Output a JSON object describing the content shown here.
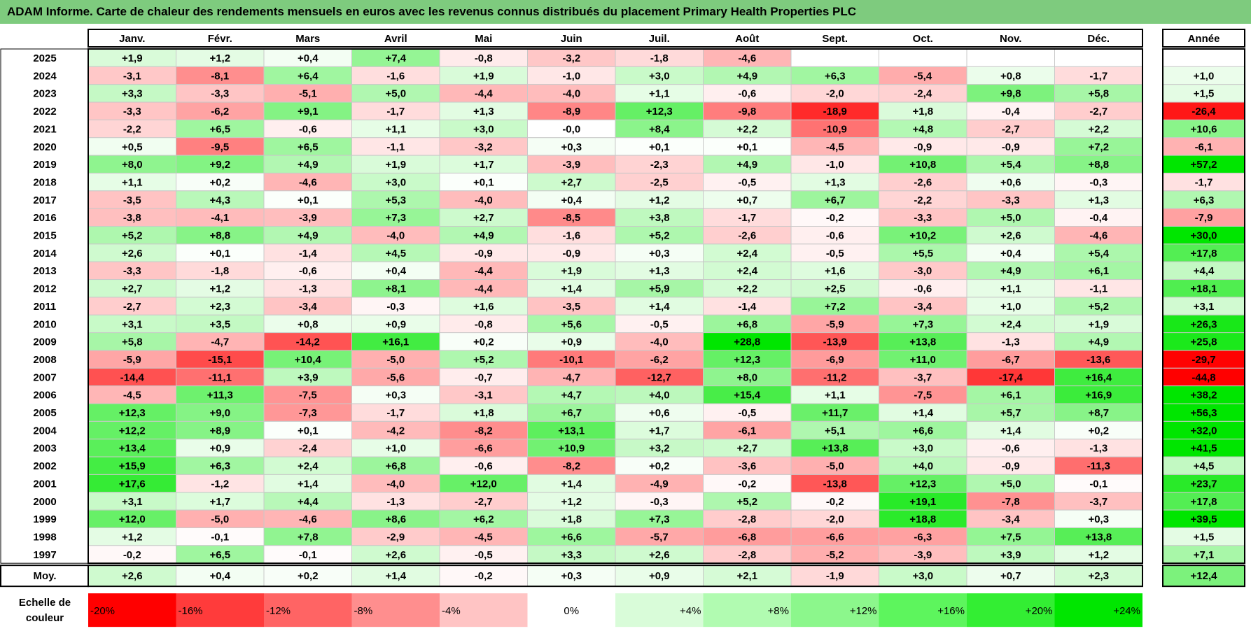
{
  "title": "ADAM Informe. Carte de chaleur des rendements mensuels en euros avec les revenus connus distribués du placement Primary Health Properties PLC",
  "chart_data": {
    "type": "heatmap",
    "title": "ADAM Informe. Carte de chaleur des rendements mensuels en euros avec les revenus connus distribués du placement Primary Health Properties PLC",
    "columns": [
      "Janv.",
      "Févr.",
      "Mars",
      "Avril",
      "Mai",
      "Juin",
      "Juil.",
      "Août",
      "Sept.",
      "Oct.",
      "Nov.",
      "Déc."
    ],
    "year_header": "Année",
    "rows": [
      {
        "label": "2025",
        "values": [
          "+1,9",
          "+1,2",
          "+0,4",
          "+7,4",
          "-0,8",
          "-3,2",
          "-1,8",
          "-4,6",
          "",
          "",
          "",
          ""
        ],
        "year": ""
      },
      {
        "label": "2024",
        "values": [
          "-3,1",
          "-8,1",
          "+6,4",
          "-1,6",
          "+1,9",
          "-1,0",
          "+3,0",
          "+4,9",
          "+6,3",
          "-5,4",
          "+0,8",
          "-1,7"
        ],
        "year": "+1,0"
      },
      {
        "label": "2023",
        "values": [
          "+3,3",
          "-3,3",
          "-5,1",
          "+5,0",
          "-4,4",
          "-4,0",
          "+1,1",
          "-0,6",
          "-2,0",
          "-2,4",
          "+9,8",
          "+5,8"
        ],
        "year": "+1,5"
      },
      {
        "label": "2022",
        "values": [
          "-3,3",
          "-6,2",
          "+9,1",
          "-1,7",
          "+1,3",
          "-8,9",
          "+12,3",
          "-9,8",
          "-18,9",
          "+1,8",
          "-0,4",
          "-2,7"
        ],
        "year": "-26,4"
      },
      {
        "label": "2021",
        "values": [
          "-2,2",
          "+6,5",
          "-0,6",
          "+1,1",
          "+3,0",
          "-0,0",
          "+8,4",
          "+2,2",
          "-10,9",
          "+4,8",
          "-2,7",
          "+2,2"
        ],
        "year": "+10,6"
      },
      {
        "label": "2020",
        "values": [
          "+0,5",
          "-9,5",
          "+6,5",
          "-1,1",
          "-3,2",
          "+0,3",
          "+0,1",
          "+0,1",
          "-4,5",
          "-0,9",
          "-0,9",
          "+7,2"
        ],
        "year": "-6,1"
      },
      {
        "label": "2019",
        "values": [
          "+8,0",
          "+9,2",
          "+4,9",
          "+1,9",
          "+1,7",
          "-3,9",
          "-2,3",
          "+4,9",
          "-1,0",
          "+10,8",
          "+5,4",
          "+8,8"
        ],
        "year": "+57,2"
      },
      {
        "label": "2018",
        "values": [
          "+1,1",
          "+0,2",
          "-4,6",
          "+3,0",
          "+0,1",
          "+2,7",
          "-2,5",
          "-0,5",
          "+1,3",
          "-2,6",
          "+0,6",
          "-0,3"
        ],
        "year": "-1,7"
      },
      {
        "label": "2017",
        "values": [
          "-3,5",
          "+4,3",
          "+0,1",
          "+5,3",
          "-4,0",
          "+0,4",
          "+1,2",
          "+0,7",
          "+6,7",
          "-2,2",
          "-3,3",
          "+1,3"
        ],
        "year": "+6,3"
      },
      {
        "label": "2016",
        "values": [
          "-3,8",
          "-4,1",
          "-3,9",
          "+7,3",
          "+2,7",
          "-8,5",
          "+3,8",
          "-1,7",
          "-0,2",
          "-3,3",
          "+5,0",
          "-0,4"
        ],
        "year": "-7,9"
      },
      {
        "label": "2015",
        "values": [
          "+5,2",
          "+8,8",
          "+4,9",
          "-4,0",
          "+4,9",
          "-1,6",
          "+5,2",
          "-2,6",
          "-0,6",
          "+10,2",
          "+2,6",
          "-4,6"
        ],
        "year": "+30,0"
      },
      {
        "label": "2014",
        "values": [
          "+2,6",
          "+0,1",
          "-1,4",
          "+4,5",
          "-0,9",
          "-0,9",
          "+0,3",
          "+2,4",
          "-0,5",
          "+5,5",
          "+0,4",
          "+5,4"
        ],
        "year": "+17,8"
      },
      {
        "label": "2013",
        "values": [
          "-3,3",
          "-1,8",
          "-0,6",
          "+0,4",
          "-4,4",
          "+1,9",
          "+1,3",
          "+2,4",
          "+1,6",
          "-3,0",
          "+4,9",
          "+6,1"
        ],
        "year": "+4,4"
      },
      {
        "label": "2012",
        "values": [
          "+2,7",
          "+1,2",
          "-1,3",
          "+8,1",
          "-4,4",
          "+1,4",
          "+5,9",
          "+2,2",
          "+2,5",
          "-0,6",
          "+1,1",
          "-1,1"
        ],
        "year": "+18,1"
      },
      {
        "label": "2011",
        "values": [
          "-2,7",
          "+2,3",
          "-3,4",
          "-0,3",
          "+1,6",
          "-3,5",
          "+1,4",
          "-1,4",
          "+7,2",
          "-3,4",
          "+1,0",
          "+5,2"
        ],
        "year": "+3,1"
      },
      {
        "label": "2010",
        "values": [
          "+3,1",
          "+3,5",
          "+0,8",
          "+0,9",
          "-0,8",
          "+5,6",
          "-0,5",
          "+6,8",
          "-5,9",
          "+7,3",
          "+2,4",
          "+1,9"
        ],
        "year": "+26,3"
      },
      {
        "label": "2009",
        "values": [
          "+5,8",
          "-4,7",
          "-14,2",
          "+16,1",
          "+0,2",
          "+0,9",
          "-4,0",
          "+28,8",
          "-13,9",
          "+13,8",
          "-1,3",
          "+4,9"
        ],
        "year": "+25,8"
      },
      {
        "label": "2008",
        "values": [
          "-5,9",
          "-15,1",
          "+10,4",
          "-5,0",
          "+5,2",
          "-10,1",
          "-6,2",
          "+12,3",
          "-6,9",
          "+11,0",
          "-6,7",
          "-13,6"
        ],
        "year": "-29,7"
      },
      {
        "label": "2007",
        "values": [
          "-14,4",
          "-11,1",
          "+3,9",
          "-5,6",
          "-0,7",
          "-4,7",
          "-12,7",
          "+8,0",
          "-11,2",
          "-3,7",
          "-17,4",
          "+16,4"
        ],
        "year": "-44,8"
      },
      {
        "label": "2006",
        "values": [
          "-4,5",
          "+11,3",
          "-7,5",
          "+0,3",
          "-3,1",
          "+4,7",
          "+4,0",
          "+15,4",
          "+1,1",
          "-7,5",
          "+6,1",
          "+16,9"
        ],
        "year": "+38,2"
      },
      {
        "label": "2005",
        "values": [
          "+12,3",
          "+9,0",
          "-7,3",
          "-1,7",
          "+1,8",
          "+6,7",
          "+0,6",
          "-0,5",
          "+11,7",
          "+1,4",
          "+5,7",
          "+8,7"
        ],
        "year": "+56,3"
      },
      {
        "label": "2004",
        "values": [
          "+12,2",
          "+8,9",
          "+0,1",
          "-4,2",
          "-8,2",
          "+13,1",
          "+1,7",
          "-6,1",
          "+5,1",
          "+6,6",
          "+1,4",
          "+0,2"
        ],
        "year": "+32,0"
      },
      {
        "label": "2003",
        "values": [
          "+13,4",
          "+0,9",
          "-2,4",
          "+1,0",
          "-6,6",
          "+10,9",
          "+3,2",
          "+2,7",
          "+13,8",
          "+3,0",
          "-0,6",
          "-1,3"
        ],
        "year": "+41,5"
      },
      {
        "label": "2002",
        "values": [
          "+15,9",
          "+6,3",
          "+2,4",
          "+6,8",
          "-0,6",
          "-8,2",
          "+0,2",
          "-3,6",
          "-5,0",
          "+4,0",
          "-0,9",
          "-11,3"
        ],
        "year": "+4,5"
      },
      {
        "label": "2001",
        "values": [
          "+17,6",
          "-1,2",
          "+1,4",
          "-4,0",
          "+12,0",
          "+1,4",
          "-4,9",
          "-0,2",
          "-13,8",
          "+12,3",
          "+5,0",
          "-0,1"
        ],
        "year": "+23,7"
      },
      {
        "label": "2000",
        "values": [
          "+3,1",
          "+1,7",
          "+4,4",
          "-1,3",
          "-2,7",
          "+1,2",
          "-0,3",
          "+5,2",
          "-0,2",
          "+19,1",
          "-7,8",
          "-3,7"
        ],
        "year": "+17,8"
      },
      {
        "label": "1999",
        "values": [
          "+12,0",
          "-5,0",
          "-4,6",
          "+8,6",
          "+6,2",
          "+1,8",
          "+7,3",
          "-2,8",
          "-2,0",
          "+18,8",
          "-3,4",
          "+0,3"
        ],
        "year": "+39,5"
      },
      {
        "label": "1998",
        "values": [
          "+1,2",
          "-0,1",
          "+7,8",
          "-2,9",
          "-4,5",
          "+6,6",
          "-5,7",
          "-6,8",
          "-6,6",
          "-6,3",
          "+7,5",
          "+13,8"
        ],
        "year": "+1,5"
      },
      {
        "label": "1997",
        "values": [
          "-0,2",
          "+6,5",
          "-0,1",
          "+2,6",
          "-0,5",
          "+3,3",
          "+2,6",
          "-2,8",
          "-5,2",
          "-3,9",
          "+3,9",
          "+1,2"
        ],
        "year": "+7,1"
      }
    ],
    "average_row": {
      "label": "Moy.",
      "values": [
        "+2,6",
        "+0,4",
        "+0,2",
        "+1,4",
        "-0,2",
        "+0,3",
        "+0,9",
        "+2,1",
        "-1,9",
        "+3,0",
        "+0,7",
        "+2,3"
      ],
      "year": "+12,4"
    },
    "scale": {
      "label_line1": "Echelle de",
      "label_line2": "couleur",
      "items": [
        {
          "label": "-20%",
          "value": -20,
          "color": "#ff0000"
        },
        {
          "label": "-16%",
          "value": -16,
          "color": "#ff3b3b"
        },
        {
          "label": "-12%",
          "value": -12,
          "color": "#ff6464"
        },
        {
          "label": "-8%",
          "value": -8,
          "color": "#ff8e8e"
        },
        {
          "label": "-4%",
          "value": -4,
          "color": "#ffc4c4"
        },
        {
          "label": "0%",
          "value": 0,
          "color": "#ffffff"
        },
        {
          "label": "+4%",
          "value": 4,
          "color": "#d9fcd9"
        },
        {
          "label": "+8%",
          "value": 8,
          "color": "#b1fbb1"
        },
        {
          "label": "+12%",
          "value": 12,
          "color": "#8cf78c"
        },
        {
          "label": "+16%",
          "value": 16,
          "color": "#5df55d"
        },
        {
          "label": "+20%",
          "value": 20,
          "color": "#33ee33"
        },
        {
          "label": "+24%",
          "value": 24,
          "color": "#00e600"
        }
      ]
    },
    "colors": {
      "negative_max": "#ff0000",
      "neutral": "#ffffff",
      "positive_max": "#00dd00",
      "title_bar": "#7ecb7e"
    }
  }
}
